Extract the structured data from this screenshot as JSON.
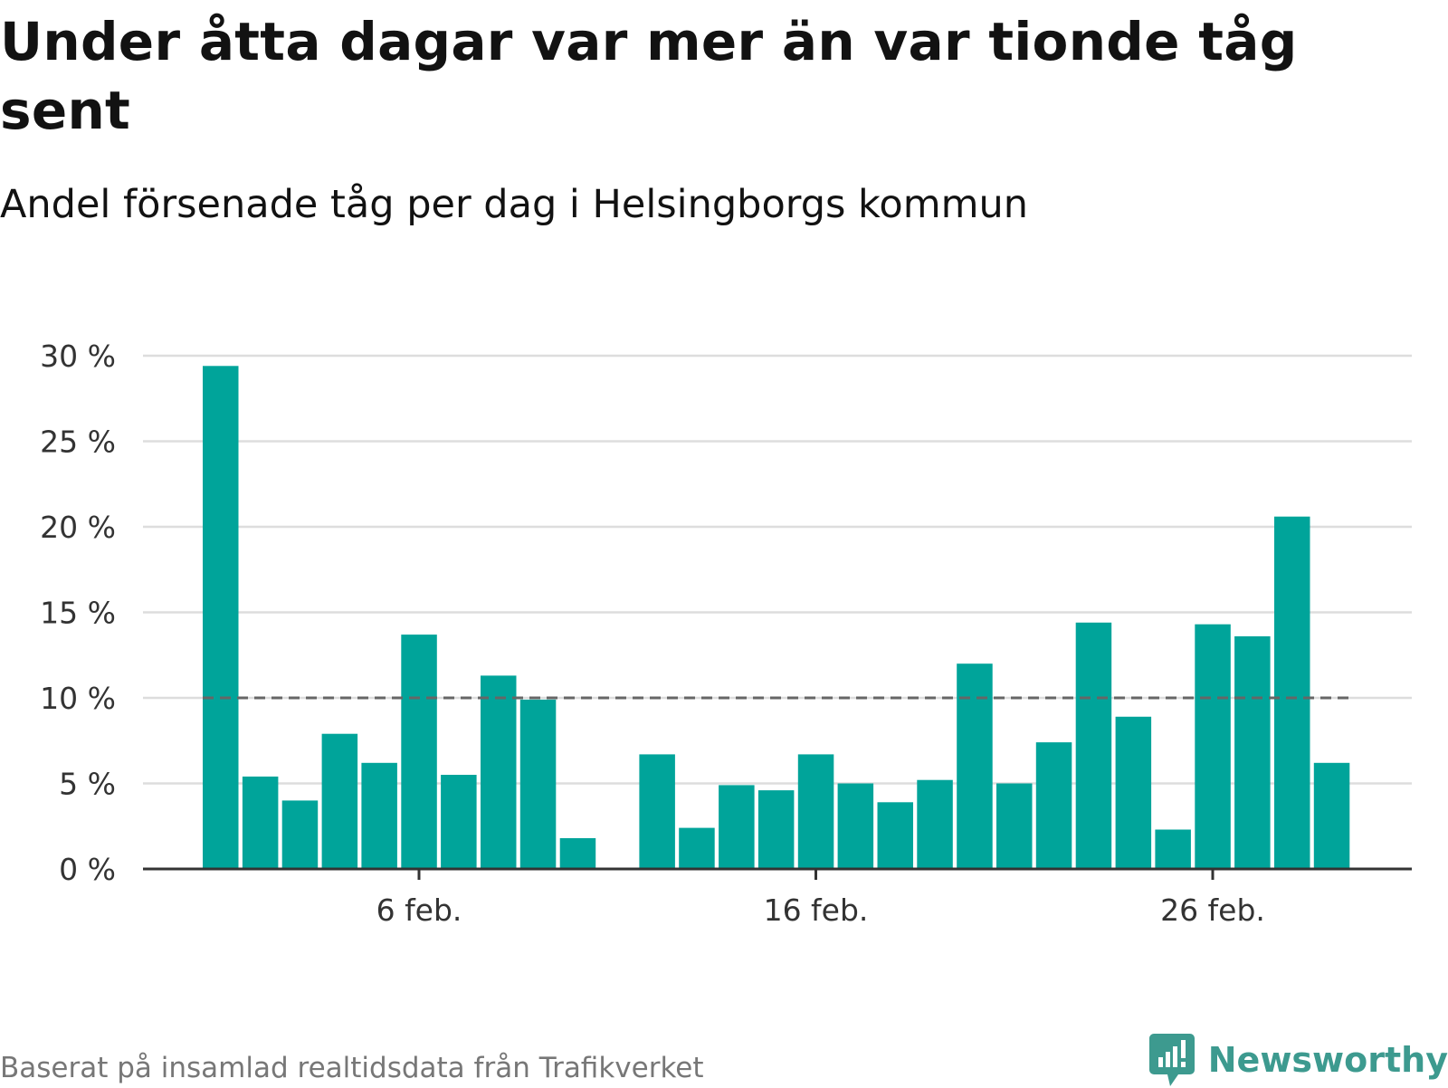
{
  "header": {
    "title": "Under åtta dagar var mer än var tionde tåg sent",
    "subtitle": "Andel försenade tåg per dag i Helsingborgs kommun"
  },
  "footer": {
    "source": "Baserat på insamlad realtidsdata från Trafikverket",
    "logo_text": "Newsworthy"
  },
  "colors": {
    "bar": "#00a49a",
    "reference_line": "#666666",
    "grid": "#dddddd",
    "axis": "#333333",
    "logo": "#3d9a8f"
  },
  "chart_data": {
    "type": "bar",
    "x": [
      "2024-02-01",
      "2024-02-02",
      "2024-02-03",
      "2024-02-04",
      "2024-02-05",
      "2024-02-06",
      "2024-02-07",
      "2024-02-08",
      "2024-02-09",
      "2024-02-10",
      "2024-02-11",
      "2024-02-12",
      "2024-02-13",
      "2024-02-14",
      "2024-02-15",
      "2024-02-16",
      "2024-02-17",
      "2024-02-18",
      "2024-02-19",
      "2024-02-20",
      "2024-02-21",
      "2024-02-22",
      "2024-02-23",
      "2024-02-24",
      "2024-02-25",
      "2024-02-26",
      "2024-02-27",
      "2024-02-28",
      "2024-02-29"
    ],
    "values": [
      29.4,
      5.4,
      4.0,
      7.9,
      6.2,
      13.7,
      5.5,
      11.3,
      9.9,
      1.8,
      null,
      6.7,
      2.4,
      4.9,
      4.6,
      6.7,
      5.0,
      3.9,
      5.2,
      12.0,
      5.0,
      7.4,
      14.4,
      8.9,
      2.3,
      14.3,
      13.6,
      20.6,
      6.2
    ],
    "reference_line": 10,
    "ylim": [
      0,
      30
    ],
    "yticks": [
      0,
      5,
      10,
      15,
      20,
      25,
      30
    ],
    "ytick_labels": [
      "0 %",
      "5 %",
      "10 %",
      "15 %",
      "20 %",
      "25 %",
      "30 %"
    ],
    "xticks": [
      "2024-02-06",
      "2024-02-16",
      "2024-02-26"
    ],
    "xtick_labels": [
      "6 feb.",
      "16 feb.",
      "26 feb."
    ],
    "grid": true,
    "legend": "none"
  }
}
